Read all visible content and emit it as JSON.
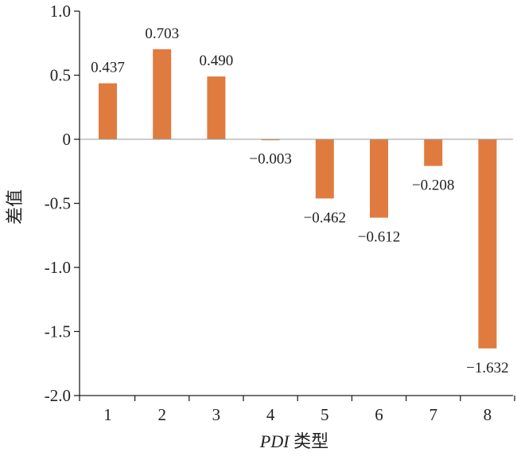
{
  "chart_data": {
    "type": "bar",
    "title": "",
    "xlabel_italic": "PDI",
    "xlabel_rest": " 类型",
    "ylabel": "差值",
    "categories": [
      "1",
      "2",
      "3",
      "4",
      "5",
      "6",
      "7",
      "8"
    ],
    "values": [
      0.437,
      0.703,
      0.49,
      -0.003,
      -0.462,
      -0.612,
      -0.208,
      -1.632
    ],
    "data_labels": [
      "0.437",
      "0.703",
      "0.490",
      "−0.003",
      "−0.462",
      "−0.612",
      "−0.208",
      "−1.632"
    ],
    "ylim": [
      -2.0,
      1.0
    ],
    "yticks": [
      1.0,
      0.5,
      0,
      -0.5,
      -1.0,
      -1.5,
      -2.0
    ],
    "ytick_labels": [
      "1.0",
      "0.5",
      "0",
      "-0.5",
      "-1.0",
      "-1.5",
      "-2.0"
    ],
    "grid": false,
    "bar_color": "#E07B40"
  }
}
